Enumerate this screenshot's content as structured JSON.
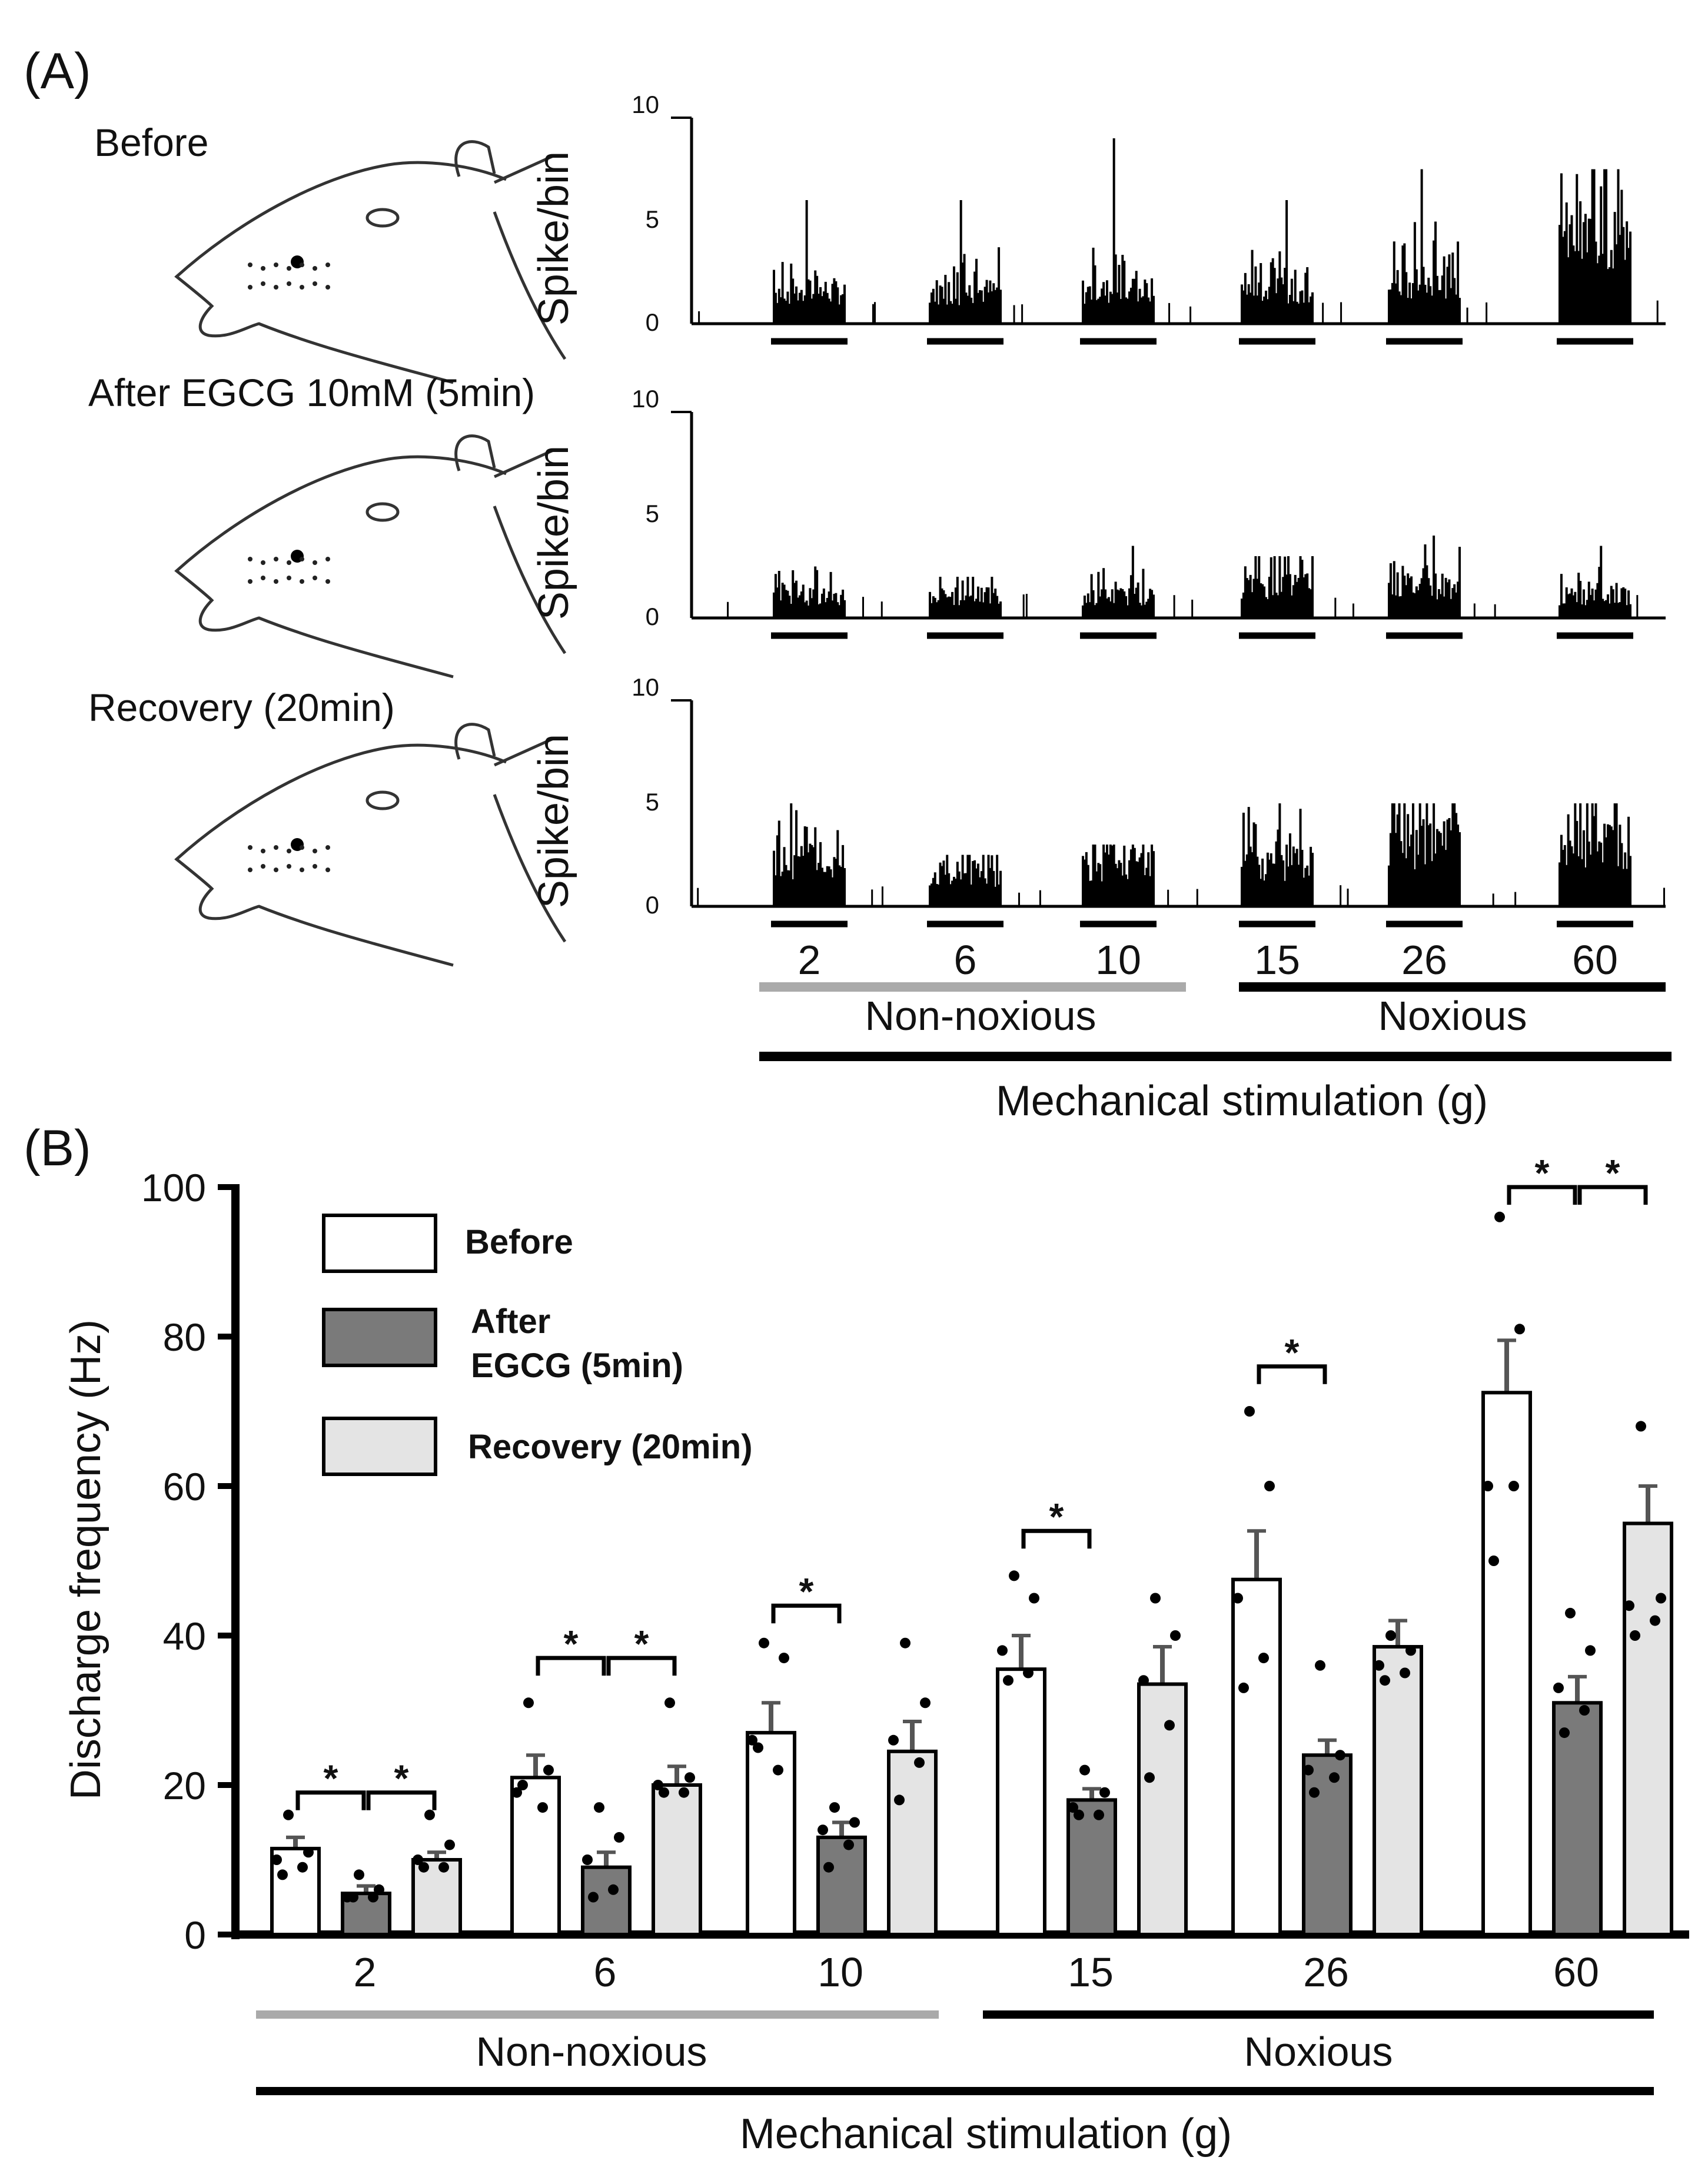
{
  "panelA": {
    "label": "(A)",
    "ylabel": "Spike/bin",
    "yticks": [
      "10",
      "5",
      "0"
    ],
    "ymax": 10,
    "conditions": [
      {
        "name": "Before",
        "peaks": [
          6,
          6,
          9,
          6,
          7.5,
          7.5
        ],
        "levels": [
          1.5,
          1.5,
          1.5,
          1.5,
          2,
          4
        ]
      },
      {
        "name": "After EGCG 10mM (5min)",
        "peaks": [
          2.5,
          2,
          3.5,
          3,
          4,
          3.5
        ],
        "levels": [
          1,
          1,
          1,
          1.5,
          1.5,
          1
        ]
      },
      {
        "name": "Recovery (20min)",
        "peaks": [
          5,
          2.5,
          3,
          5,
          5,
          5
        ],
        "levels": [
          2,
          1.5,
          2,
          2,
          3,
          3
        ]
      }
    ],
    "stimuli": [
      "2",
      "6",
      "10",
      "15",
      "26",
      "60"
    ],
    "groups": {
      "non_noxious": "Non-noxious",
      "noxious": "Noxious"
    },
    "xlabel": "Mechanical stimulation (g)"
  },
  "chart_data": {
    "type": "bar",
    "panel_label": "(B)",
    "categories": [
      "2",
      "6",
      "10",
      "15",
      "26",
      "60"
    ],
    "series": [
      {
        "name": "Before",
        "values": [
          11.5,
          21,
          27,
          35.5,
          47.5,
          72.5
        ],
        "errors": [
          1.5,
          3,
          4,
          4.5,
          6.5,
          7
        ],
        "points": [
          [
            16,
            11,
            10,
            9,
            8
          ],
          [
            31,
            22,
            19,
            17,
            20
          ],
          [
            39,
            37,
            26,
            22,
            25
          ],
          [
            48,
            45,
            38,
            35,
            34
          ],
          [
            70,
            60,
            45,
            37,
            33
          ],
          [
            96,
            81,
            60,
            60,
            50
          ]
        ],
        "color": "#ffffff"
      },
      {
        "name": "After\nEGCG (5min)",
        "values": [
          5.5,
          9,
          13,
          18,
          24,
          31
        ],
        "errors": [
          1,
          2,
          2,
          1.5,
          2,
          3.5
        ],
        "points": [
          [
            8,
            6,
            5,
            5,
            5
          ],
          [
            17,
            13,
            10,
            6,
            5
          ],
          [
            17,
            15,
            14,
            12,
            9
          ],
          [
            22,
            19,
            17,
            16,
            16
          ],
          [
            36,
            24,
            22,
            21,
            19
          ],
          [
            43,
            38,
            33,
            30,
            27
          ]
        ],
        "color": "#7a7a7a"
      },
      {
        "name": "Recovery (20min)",
        "values": [
          10,
          20,
          24.5,
          33.5,
          38.5,
          55
        ],
        "errors": [
          1,
          2.5,
          4,
          5,
          3.5,
          5
        ],
        "points": [
          [
            16,
            12,
            10,
            9,
            9
          ],
          [
            31,
            21,
            20,
            19,
            19
          ],
          [
            39,
            31,
            26,
            23,
            18
          ],
          [
            45,
            40,
            34,
            28,
            21
          ],
          [
            40,
            38,
            36,
            35,
            34
          ],
          [
            68,
            45,
            44,
            42,
            40
          ]
        ],
        "color": "#e4e4e4"
      }
    ],
    "ylabel": "Discharge frequency (Hz)",
    "ylim": [
      0,
      100
    ],
    "yticks": [
      "0",
      "20",
      "40",
      "60",
      "80",
      "100"
    ],
    "xlabel": "Mechanical stimulation (g)",
    "groups": {
      "non_noxious": "Non-noxious",
      "noxious": "Noxious"
    },
    "significance": [
      {
        "category": 0,
        "pair": [
          0,
          1
        ],
        "y": 19,
        "label": "*"
      },
      {
        "category": 0,
        "pair": [
          1,
          2
        ],
        "y": 19,
        "label": "*"
      },
      {
        "category": 1,
        "pair": [
          0,
          1
        ],
        "y": 37,
        "label": "*"
      },
      {
        "category": 1,
        "pair": [
          1,
          2
        ],
        "y": 37,
        "label": "*"
      },
      {
        "category": 2,
        "pair": [
          0,
          1
        ],
        "y": 44,
        "label": "*"
      },
      {
        "category": 3,
        "pair": [
          0,
          1
        ],
        "y": 54,
        "label": "*"
      },
      {
        "category": 4,
        "pair": [
          0,
          1
        ],
        "y": 76,
        "label": "*"
      },
      {
        "category": 5,
        "pair": [
          0,
          1
        ],
        "y": 100,
        "label": "*"
      },
      {
        "category": 5,
        "pair": [
          1,
          2
        ],
        "y": 100,
        "label": "*"
      }
    ],
    "legend": "top-left",
    "grid": false
  }
}
